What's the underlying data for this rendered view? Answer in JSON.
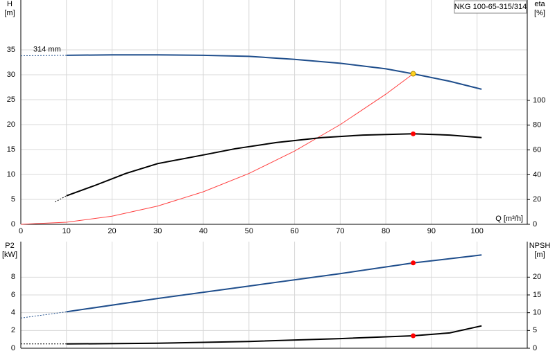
{
  "chart_data": [
    {
      "type": "line",
      "title": "NKG 100-65-315/314",
      "ylabel": "H",
      "yunit": "[m]",
      "y2label": "eta",
      "y2unit": "[%]",
      "xlabel": "Q [m³/h]",
      "annotation": "314 mm",
      "xlim": [
        0,
        111
      ],
      "xticks": [
        0,
        10,
        20,
        30,
        40,
        50,
        60,
        70,
        80,
        90,
        100
      ],
      "ylim": [
        0,
        45
      ],
      "yticks": [
        0,
        5,
        10,
        15,
        20,
        25,
        30,
        35
      ],
      "y2lim": [
        0,
        181
      ],
      "y2ticks": [
        0,
        20,
        40,
        60,
        80,
        100
      ],
      "grid": true,
      "xtick_labels": true,
      "series": [
        {
          "color": "#1f4e8c",
          "width": 2,
          "dashed": true,
          "x": [
            0,
            10
          ],
          "values": [
            33.8,
            33.9
          ]
        },
        {
          "color": "#1f4e8c",
          "width": 2,
          "x": [
            10,
            20,
            30,
            40,
            50,
            60,
            70,
            80,
            86,
            94,
            101
          ],
          "values": [
            33.9,
            34.0,
            34.0,
            33.9,
            33.7,
            33.1,
            32.3,
            31.2,
            30.2,
            28.7,
            27.1
          ]
        },
        {
          "color": "#ff4040",
          "width": 1,
          "x": [
            0,
            10,
            20,
            30,
            40,
            50,
            60,
            70,
            80,
            86
          ],
          "values": [
            0,
            0.41,
            1.63,
            3.67,
            6.53,
            10.2,
            14.7,
            20.0,
            26.1,
            30.2
          ]
        },
        {
          "color": "#000000",
          "width": 2,
          "dashed": true,
          "axis": "y2",
          "x": [
            7.5,
            10
          ],
          "values": [
            18,
            23
          ]
        },
        {
          "color": "#000000",
          "width": 2,
          "axis": "y2",
          "x": [
            10,
            16,
            23,
            30,
            40,
            47,
            56,
            66,
            75,
            86,
            94,
            101
          ],
          "values": [
            23,
            31,
            41,
            49,
            56,
            61,
            66,
            70,
            72,
            73,
            72,
            70
          ]
        }
      ],
      "markers": [
        {
          "x": 86,
          "value": 30.2,
          "color": "#ffd21f"
        },
        {
          "x": 86,
          "value": 73,
          "color": "#ff0000",
          "axis": "y2"
        }
      ]
    },
    {
      "type": "line",
      "ylabel": "P2",
      "yunit": "[kW]",
      "y2label": "NPSH",
      "y2unit": "[m]",
      "xlim": [
        0,
        111
      ],
      "xticks": [
        0,
        10,
        20,
        30,
        40,
        50,
        60,
        70,
        80,
        90,
        100
      ],
      "ylim": [
        0,
        12
      ],
      "yticks": [
        0,
        2,
        4,
        6,
        8
      ],
      "y2lim": [
        0,
        30
      ],
      "y2ticks": [
        0,
        5,
        10,
        15,
        20
      ],
      "grid": true,
      "xtick_labels": false,
      "series": [
        {
          "color": "#1f4e8c",
          "width": 2,
          "dashed": true,
          "x": [
            0,
            10
          ],
          "values": [
            3.4,
            4.1
          ]
        },
        {
          "color": "#1f4e8c",
          "width": 2,
          "x": [
            10,
            30,
            50,
            70,
            86,
            101
          ],
          "values": [
            4.1,
            5.6,
            7.0,
            8.4,
            9.6,
            10.5
          ]
        },
        {
          "color": "#000000",
          "width": 2,
          "dashed": true,
          "axis": "y2",
          "x": [
            0,
            10
          ],
          "values": [
            1.2,
            1.2
          ]
        },
        {
          "color": "#000000",
          "width": 2,
          "axis": "y2",
          "x": [
            10,
            30,
            50,
            70,
            86,
            94,
            101
          ],
          "values": [
            1.2,
            1.4,
            1.9,
            2.7,
            3.5,
            4.3,
            6.3
          ]
        }
      ],
      "markers": [
        {
          "x": 86,
          "value": 9.6,
          "color": "#ff0000"
        },
        {
          "x": 86,
          "value": 3.5,
          "color": "#ff0000",
          "axis": "y2"
        }
      ]
    }
  ]
}
